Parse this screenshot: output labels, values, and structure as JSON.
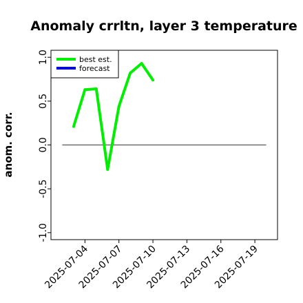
{
  "chart_data": {
    "type": "line",
    "title": "Anomaly crrltn, layer 3 temperature",
    "xlabel": "",
    "ylabel": "anom. corr.",
    "ylim": [
      -1.08,
      1.08
    ],
    "yticks": [
      -1.0,
      -0.5,
      0.0,
      0.5,
      1.0
    ],
    "ytick_labels": [
      "-1.0",
      "-0.5",
      "0.0",
      "0.5",
      "1.0"
    ],
    "xlim": [
      "2025-07-01",
      "2025-07-21"
    ],
    "xticks": [
      "2025-07-04",
      "2025-07-07",
      "2025-07-10",
      "2025-07-13",
      "2025-07-16",
      "2025-07-19"
    ],
    "highlighted_xtick": "2025-07-10",
    "highlight_color": "#228b22",
    "reference_line": {
      "y": 0.0,
      "from": "2025-07-02",
      "to": "2025-07-20",
      "color": "#555555"
    },
    "legend": {
      "position": "top-left",
      "frame": true
    },
    "series": [
      {
        "name": "best est.",
        "color": "#00ee00",
        "x": [
          "2025-07-03",
          "2025-07-04",
          "2025-07-05",
          "2025-07-06",
          "2025-07-07",
          "2025-07-08",
          "2025-07-09",
          "2025-07-10"
        ],
        "values": [
          0.21,
          0.63,
          0.64,
          -0.28,
          0.44,
          0.82,
          0.93,
          0.74
        ]
      },
      {
        "name": "forecast",
        "color": "#0000ff",
        "x": [],
        "values": []
      }
    ]
  }
}
